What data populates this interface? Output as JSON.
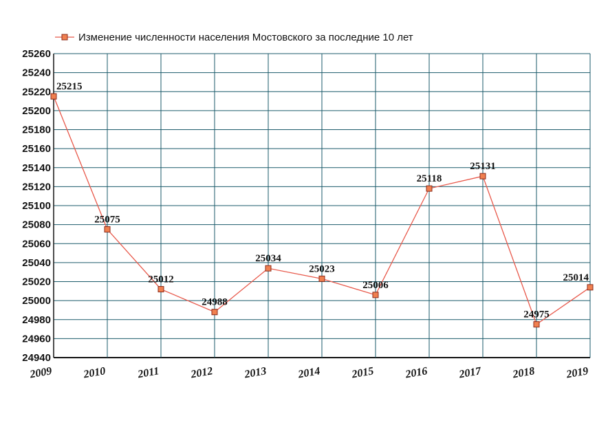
{
  "chart_data": {
    "type": "line",
    "title": "",
    "xlabel": "",
    "ylabel": "",
    "x": [
      "2009",
      "2010",
      "2011",
      "2012",
      "2013",
      "2014",
      "2015",
      "2016",
      "2017",
      "2018",
      "2019"
    ],
    "series": [
      {
        "name": "Изменение численности населения Мостовского за последние 10 лет",
        "values": [
          25215,
          25075,
          25012,
          24988,
          25034,
          25023,
          25006,
          25118,
          25131,
          24975,
          25014
        ],
        "color": "#e8584a",
        "marker_fill": "#f08050",
        "marker_stroke": "#8a2a1a"
      }
    ],
    "data_labels": [
      "25215",
      "25075",
      "25012",
      "24988",
      "25034",
      "25023",
      "25006",
      "25118",
      "25131",
      "24975",
      "25014"
    ],
    "ylim": [
      24940,
      25260
    ],
    "yticks": [
      "24940",
      "24960",
      "24980",
      "25000",
      "25020",
      "25040",
      "25060",
      "25080",
      "25100",
      "25120",
      "25140",
      "25160",
      "25180",
      "25200",
      "25220",
      "25240",
      "25260"
    ],
    "grid": true,
    "grid_color": "#1a5a6a",
    "legend_position": "top"
  }
}
